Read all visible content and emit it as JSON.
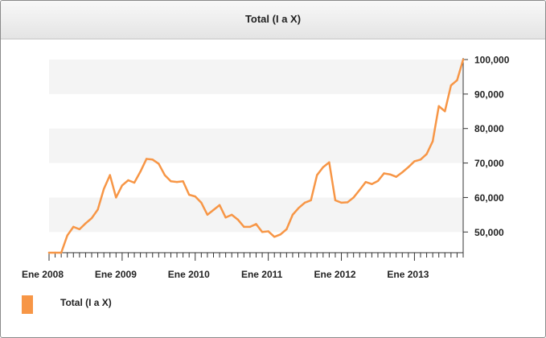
{
  "chart_data": {
    "type": "line",
    "title": "Total (I a X)",
    "xlabel": "",
    "ylabel": "",
    "x_tick_labels": [
      "Ene 2008",
      "Ene 2009",
      "Ene 2010",
      "Ene 2011",
      "Ene 2012",
      "Ene 2013"
    ],
    "y_tick_labels": [
      "50,000",
      "60,000",
      "70,000",
      "80,000",
      "90,000",
      "100,000"
    ],
    "y_ticks": [
      50000,
      60000,
      70000,
      80000,
      90000,
      100000
    ],
    "ylim": [
      44000,
      100000
    ],
    "x_start": "2008-01",
    "grid": "alternating horizontal bands",
    "y_axis_position": "right",
    "legend_position": "bottom-left",
    "series": [
      {
        "name": "Total (I a X)",
        "color": "#f79646",
        "values": [
          44000,
          44000,
          44000,
          49000,
          51500,
          50800,
          52500,
          54000,
          56500,
          62500,
          66500,
          60000,
          63500,
          65000,
          64300,
          67500,
          71200,
          71000,
          69800,
          66500,
          64700,
          64500,
          64700,
          60800,
          60300,
          58500,
          55000,
          56400,
          57800,
          54200,
          55000,
          53600,
          51500,
          51500,
          52300,
          50000,
          50200,
          48600,
          49300,
          50800,
          55000,
          57000,
          58500,
          59200,
          66500,
          68800,
          70200,
          59200,
          58500,
          58600,
          60000,
          62200,
          64500,
          63900,
          64800,
          67000,
          66700,
          66000,
          67300,
          68800,
          70500,
          71000,
          72600,
          76300,
          86500,
          85000,
          92500,
          94000,
          100000
        ]
      }
    ]
  }
}
